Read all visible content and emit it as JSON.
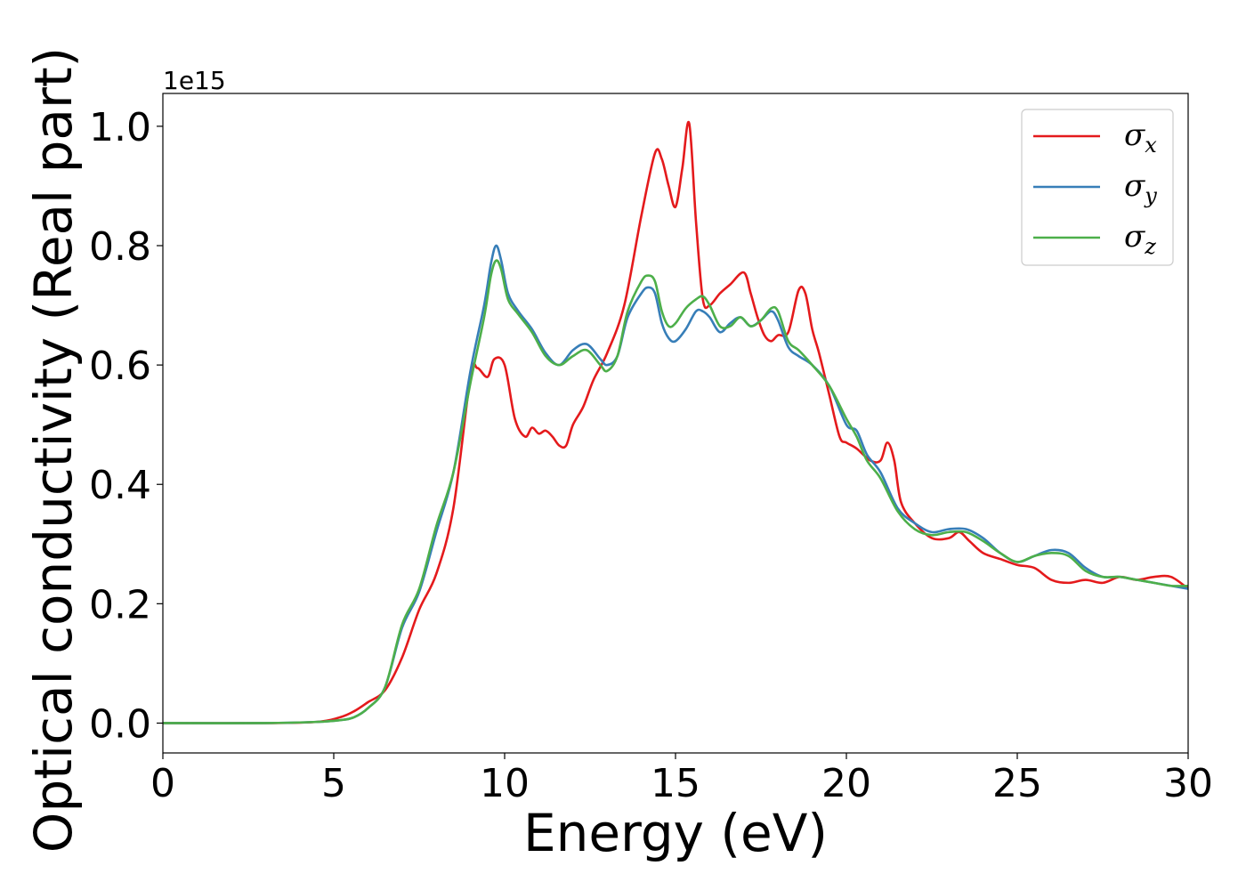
{
  "chart_data": {
    "type": "line",
    "xlabel": "Energy (eV)",
    "ylabel": "Optical conductivity (Real part)",
    "y_offset_text": "1e15",
    "xlim": [
      0,
      30
    ],
    "ylim": [
      -0.05,
      1.055
    ],
    "x_ticks": [
      0,
      5,
      10,
      15,
      20,
      25,
      30
    ],
    "y_ticks": [
      0.0,
      0.2,
      0.4,
      0.6,
      0.8,
      1.0
    ],
    "x_tick_labels": [
      "0",
      "5",
      "10",
      "15",
      "20",
      "25",
      "30"
    ],
    "y_tick_labels": [
      "0.0",
      "0.2",
      "0.4",
      "0.6",
      "0.8",
      "1.0"
    ],
    "grid": false,
    "legend_position": "top-right",
    "series": [
      {
        "name": "σ",
        "subscript": "x",
        "color": "#e41a1c",
        "x": [
          0,
          3,
          4.5,
          5.2,
          5.6,
          6.0,
          6.5,
          7.0,
          7.5,
          8.0,
          8.5,
          9.0,
          9.2,
          9.5,
          9.7,
          10.0,
          10.3,
          10.6,
          10.8,
          11.0,
          11.2,
          11.4,
          11.6,
          11.8,
          12.0,
          12.3,
          12.6,
          13.0,
          13.5,
          14.0,
          14.4,
          14.6,
          14.8,
          15.0,
          15.2,
          15.4,
          15.6,
          15.8,
          16.0,
          16.3,
          16.6,
          17.0,
          17.2,
          17.4,
          17.6,
          17.8,
          18.0,
          18.3,
          18.6,
          18.8,
          19.0,
          19.2,
          19.5,
          19.8,
          20.0,
          20.3,
          20.7,
          21.0,
          21.2,
          21.4,
          21.6,
          22.0,
          22.5,
          23.0,
          23.3,
          23.6,
          24.0,
          24.5,
          25.0,
          25.5,
          26.0,
          26.5,
          27.0,
          27.5,
          28.0,
          28.5,
          29.0,
          29.5,
          30.0
        ],
        "y": [
          0.0,
          0.0,
          0.002,
          0.01,
          0.02,
          0.035,
          0.055,
          0.11,
          0.19,
          0.25,
          0.36,
          0.58,
          0.595,
          0.58,
          0.61,
          0.6,
          0.51,
          0.48,
          0.495,
          0.485,
          0.49,
          0.48,
          0.465,
          0.465,
          0.5,
          0.53,
          0.575,
          0.62,
          0.7,
          0.85,
          0.955,
          0.945,
          0.9,
          0.865,
          0.93,
          1.005,
          0.84,
          0.71,
          0.7,
          0.72,
          0.735,
          0.755,
          0.72,
          0.68,
          0.65,
          0.64,
          0.65,
          0.655,
          0.725,
          0.72,
          0.66,
          0.62,
          0.55,
          0.48,
          0.47,
          0.46,
          0.44,
          0.44,
          0.47,
          0.44,
          0.37,
          0.335,
          0.31,
          0.31,
          0.32,
          0.305,
          0.285,
          0.275,
          0.265,
          0.26,
          0.24,
          0.235,
          0.24,
          0.235,
          0.245,
          0.24,
          0.245,
          0.245,
          0.225
        ]
      },
      {
        "name": "σ",
        "subscript": "y",
        "color": "#377eb8",
        "x": [
          0,
          3,
          4.5,
          5.2,
          5.6,
          6.0,
          6.5,
          7.0,
          7.5,
          8.0,
          8.5,
          9.0,
          9.4,
          9.6,
          9.75,
          9.9,
          10.1,
          10.4,
          10.8,
          11.2,
          11.6,
          12.0,
          12.4,
          12.8,
          13.0,
          13.3,
          13.6,
          14.0,
          14.2,
          14.4,
          14.6,
          14.8,
          15.0,
          15.3,
          15.6,
          15.8,
          16.0,
          16.3,
          16.6,
          16.9,
          17.2,
          17.5,
          17.8,
          18.0,
          18.3,
          18.6,
          19.0,
          19.5,
          20.0,
          20.3,
          20.6,
          21.0,
          21.5,
          22.0,
          22.5,
          23.0,
          23.5,
          24.0,
          24.5,
          25.0,
          25.5,
          26.0,
          26.5,
          27.0,
          27.5,
          28.0,
          28.5,
          29.0,
          29.5,
          30.0
        ],
        "y": [
          0.0,
          0.0,
          0.002,
          0.005,
          0.01,
          0.025,
          0.06,
          0.16,
          0.22,
          0.32,
          0.42,
          0.59,
          0.7,
          0.77,
          0.8,
          0.775,
          0.72,
          0.69,
          0.66,
          0.62,
          0.6,
          0.625,
          0.635,
          0.61,
          0.6,
          0.615,
          0.68,
          0.72,
          0.73,
          0.72,
          0.67,
          0.645,
          0.64,
          0.66,
          0.69,
          0.69,
          0.68,
          0.655,
          0.67,
          0.68,
          0.665,
          0.675,
          0.69,
          0.675,
          0.63,
          0.615,
          0.6,
          0.565,
          0.5,
          0.49,
          0.45,
          0.42,
          0.36,
          0.335,
          0.32,
          0.325,
          0.325,
          0.31,
          0.285,
          0.27,
          0.28,
          0.29,
          0.285,
          0.26,
          0.245,
          0.245,
          0.24,
          0.235,
          0.23,
          0.225
        ]
      },
      {
        "name": "σ",
        "subscript": "z",
        "color": "#4daf4a",
        "x": [
          0,
          3,
          4.5,
          5.2,
          5.6,
          6.0,
          6.5,
          7.0,
          7.5,
          8.0,
          8.5,
          9.0,
          9.4,
          9.6,
          9.75,
          9.9,
          10.1,
          10.4,
          10.8,
          11.2,
          11.6,
          12.0,
          12.4,
          12.8,
          13.0,
          13.3,
          13.6,
          14.0,
          14.2,
          14.4,
          14.6,
          14.8,
          15.0,
          15.3,
          15.6,
          15.8,
          16.0,
          16.3,
          16.6,
          16.9,
          17.2,
          17.5,
          17.8,
          18.0,
          18.3,
          18.6,
          19.0,
          19.5,
          20.0,
          20.3,
          20.6,
          21.0,
          21.5,
          22.0,
          22.5,
          23.0,
          23.5,
          24.0,
          24.5,
          25.0,
          25.5,
          26.0,
          26.5,
          27.0,
          27.5,
          28.0,
          28.5,
          29.0,
          29.5,
          30.0
        ],
        "y": [
          0.0,
          0.0,
          0.002,
          0.005,
          0.01,
          0.025,
          0.06,
          0.165,
          0.225,
          0.33,
          0.42,
          0.57,
          0.68,
          0.75,
          0.775,
          0.76,
          0.71,
          0.685,
          0.655,
          0.615,
          0.6,
          0.615,
          0.625,
          0.6,
          0.59,
          0.615,
          0.69,
          0.74,
          0.75,
          0.74,
          0.69,
          0.665,
          0.67,
          0.695,
          0.71,
          0.715,
          0.7,
          0.665,
          0.665,
          0.68,
          0.665,
          0.675,
          0.695,
          0.69,
          0.64,
          0.625,
          0.6,
          0.565,
          0.51,
          0.48,
          0.44,
          0.41,
          0.355,
          0.325,
          0.315,
          0.32,
          0.32,
          0.305,
          0.285,
          0.27,
          0.28,
          0.285,
          0.28,
          0.255,
          0.245,
          0.245,
          0.24,
          0.235,
          0.23,
          0.23
        ]
      }
    ]
  }
}
